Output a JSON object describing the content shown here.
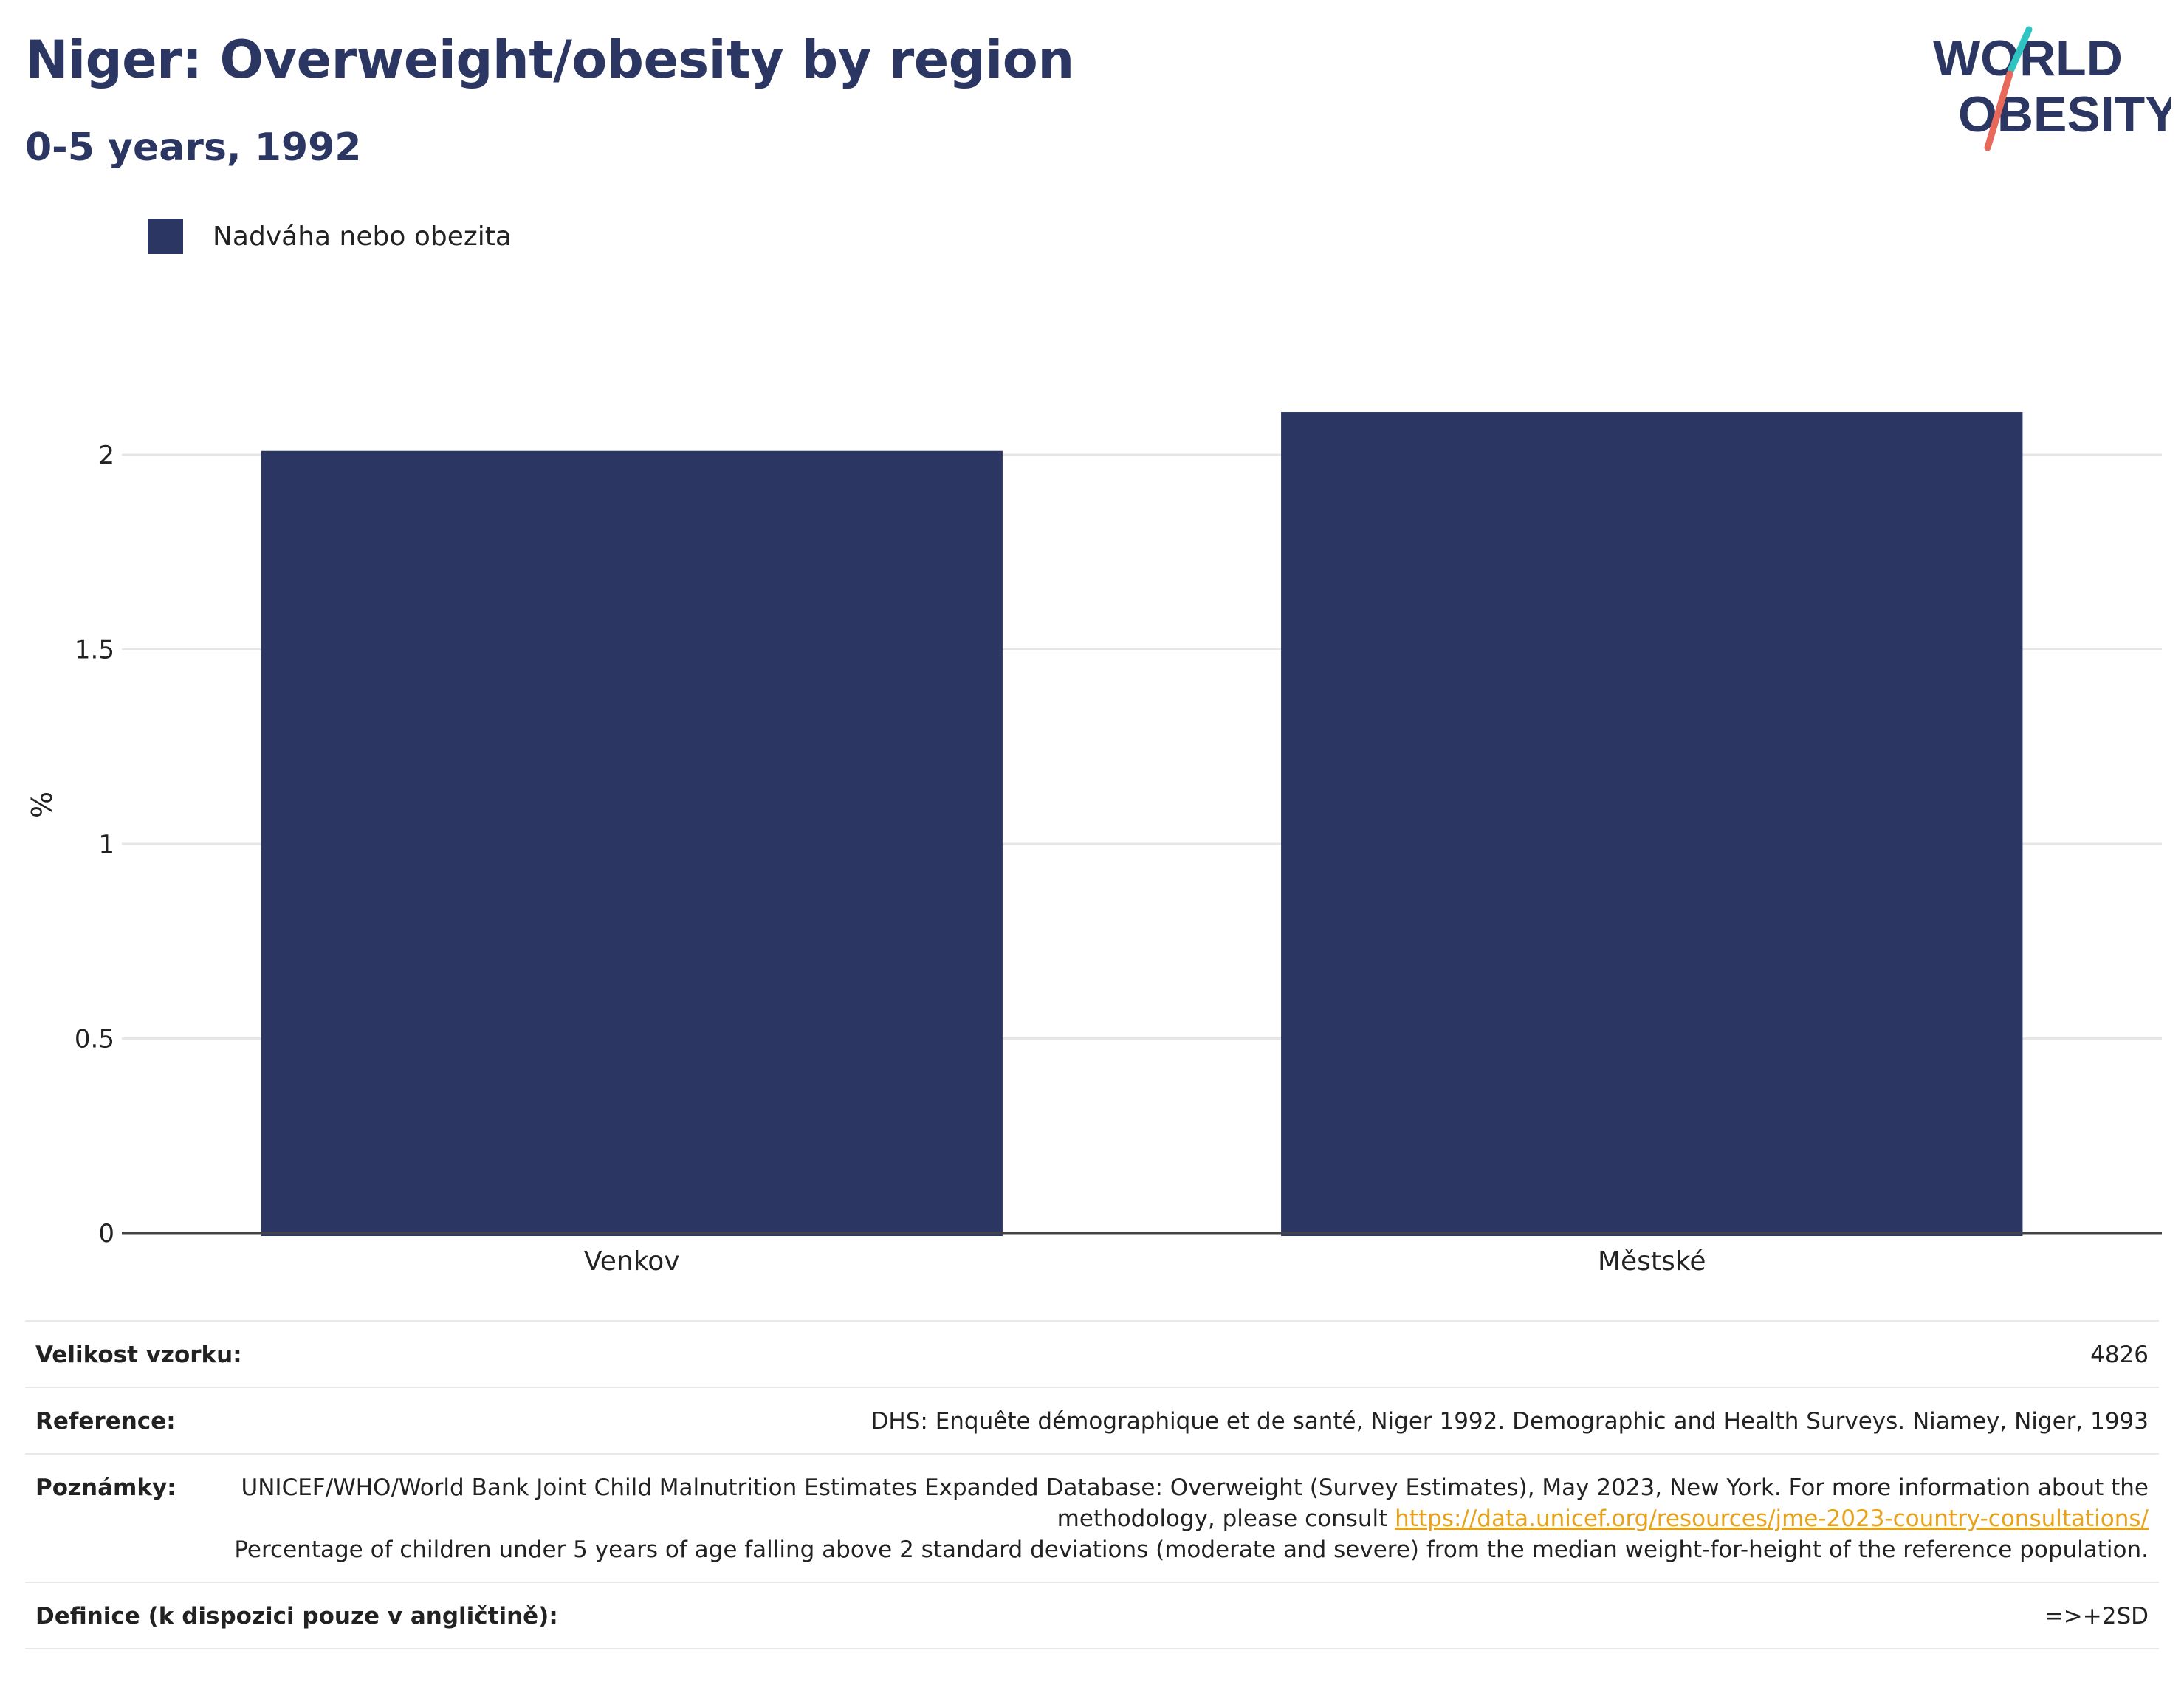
{
  "title": "Niger: Overweight/obesity by region",
  "subtitle": "0-5 years, 1992",
  "logo": {
    "line1": "WORLD",
    "line2": "OBESITY"
  },
  "legend": {
    "label": "Nadváha nebo obezita"
  },
  "colors": {
    "bar": "#2b3663",
    "brand_navy": "#2b3663",
    "logo_teal": "#2ec4c1",
    "logo_coral": "#e8685a",
    "link": "#e8a21a"
  },
  "chart_data": {
    "type": "bar",
    "categories": [
      "Venkov",
      "Městské"
    ],
    "series": [
      {
        "name": "Nadváha nebo obezita",
        "values": [
          2.01,
          2.11
        ]
      }
    ],
    "ylabel": "%",
    "xlabel": "",
    "ylim": [
      0,
      2.2
    ],
    "yticks": [
      0,
      0.5,
      1,
      1.5,
      2
    ],
    "ytick_labels": [
      "0",
      "0.5",
      "1",
      "1.5",
      "2"
    ],
    "grid": true,
    "legend_position": "top-left"
  },
  "meta": {
    "sample_size": {
      "label": "Velikost vzorku:",
      "value": "4826"
    },
    "reference": {
      "label": "Reference:",
      "value": "DHS: Enquête démographique et de santé, Niger 1992. Demographic and Health Surveys. Niamey, Niger, 1993"
    },
    "notes": {
      "label": "Poznámky:",
      "text_before": "UNICEF/WHO/World Bank Joint Child Malnutrition Estimates Expanded Database: Overweight (Survey Estimates), May 2023, New York. For more information about the methodology, please consult ",
      "link": "https://data.unicef.org/resources/jme-2023-country-consultations/",
      "text_after": "Percentage of children under 5 years of age falling above 2 standard deviations (moderate and severe) from the median weight-for-height of the reference population."
    },
    "definition": {
      "label": "Definice (k dispozici pouze v angličtině):",
      "value": "=>+2SD"
    }
  }
}
